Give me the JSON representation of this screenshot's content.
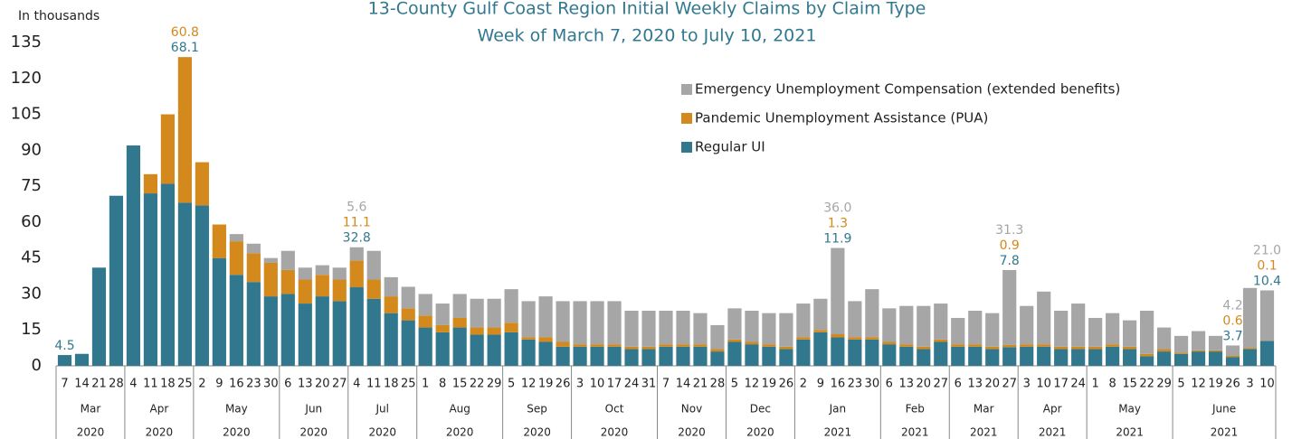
{
  "chart_data": {
    "type": "stacked_bar",
    "title": "13-County Gulf Coast Region Initial Weekly Claims by Claim Type",
    "subtitle": "Week of March 7, 2020 to July 10, 2021",
    "y_label": "In thousands",
    "months": [
      {
        "name": "Mar",
        "year": "2020",
        "days": [
          "7",
          "14",
          "21",
          "28"
        ]
      },
      {
        "name": "Apr",
        "year": "2020",
        "days": [
          "4",
          "11",
          "18",
          "25"
        ]
      },
      {
        "name": "May",
        "year": "2020",
        "days": [
          "2",
          "9",
          "16",
          "23",
          "30"
        ]
      },
      {
        "name": "Jun",
        "year": "2020",
        "days": [
          "6",
          "13",
          "20",
          "27"
        ]
      },
      {
        "name": "Jul",
        "year": "2020",
        "days": [
          "4",
          "11",
          "18",
          "25"
        ]
      },
      {
        "name": "Aug",
        "year": "2020",
        "days": [
          "1",
          "8",
          "15",
          "22",
          "29"
        ]
      },
      {
        "name": "Sep",
        "year": "2020",
        "days": [
          "5",
          "12",
          "19",
          "26"
        ]
      },
      {
        "name": "Oct",
        "year": "2020",
        "days": [
          "3",
          "10",
          "17",
          "24",
          "31"
        ]
      },
      {
        "name": "Nov",
        "year": "2020",
        "days": [
          "7",
          "14",
          "21",
          "28"
        ]
      },
      {
        "name": "Dec",
        "year": "2020",
        "days": [
          "5",
          "12",
          "19",
          "26"
        ]
      },
      {
        "name": "Jan",
        "year": "2021",
        "days": [
          "2",
          "9",
          "16",
          "23",
          "30"
        ]
      },
      {
        "name": "Feb",
        "year": "2021",
        "days": [
          "6",
          "13",
          "20",
          "27"
        ]
      },
      {
        "name": "Mar",
        "year": "2021",
        "days": [
          "6",
          "13",
          "20",
          "27"
        ]
      },
      {
        "name": "Apr",
        "year": "2021",
        "days": [
          "3",
          "10",
          "17",
          "24"
        ]
      },
      {
        "name": "May",
        "year": "2021",
        "days": [
          "1",
          "8",
          "15",
          "22",
          "29"
        ]
      },
      {
        "name": "June",
        "year": "2021",
        "days": [
          "5",
          "12",
          "19",
          "26",
          "3",
          "10"
        ]
      }
    ],
    "series": [
      {
        "name": "Regular UI",
        "color": "#31788f",
        "values": [
          4.5,
          5,
          41,
          71,
          92,
          72,
          76,
          68.1,
          67,
          45,
          38,
          35,
          29,
          30,
          26,
          29,
          27,
          32.8,
          28,
          22,
          19,
          16,
          14,
          16,
          13,
          13,
          14,
          11,
          10,
          8,
          8,
          8,
          8,
          7,
          7,
          8,
          8,
          8,
          6,
          10,
          9,
          8,
          7,
          11,
          14,
          11.9,
          11,
          11,
          9,
          8,
          7,
          10,
          8,
          8,
          7,
          7.8,
          8,
          8,
          7,
          7,
          7,
          8,
          7,
          4,
          6,
          5,
          6,
          6,
          3.7,
          7,
          10.4
        ],
        "value_labels": [
          "4.5",
          null,
          null,
          null,
          null,
          null,
          null,
          "68.1",
          null,
          null,
          null,
          null,
          null,
          null,
          null,
          null,
          null,
          "32.8",
          null,
          null,
          null,
          null,
          null,
          null,
          null,
          null,
          null,
          null,
          null,
          null,
          null,
          null,
          null,
          null,
          null,
          null,
          null,
          null,
          null,
          null,
          null,
          null,
          null,
          null,
          null,
          "11.9",
          null,
          null,
          null,
          null,
          null,
          null,
          null,
          null,
          null,
          "7.8",
          null,
          null,
          null,
          null,
          null,
          null,
          null,
          null,
          null,
          null,
          null,
          null,
          "3.7",
          null,
          "10.4"
        ]
      },
      {
        "name": "Pandemic Unemployment Assistance (PUA)",
        "color": "#d4891c",
        "values": [
          0,
          0,
          0,
          0,
          0,
          8,
          29,
          60.8,
          18,
          14,
          14,
          12,
          14,
          10,
          10,
          9,
          9,
          11.1,
          8,
          7,
          5,
          5,
          3,
          4,
          3,
          3,
          4,
          1,
          2,
          2,
          1,
          1,
          1,
          1,
          1,
          1,
          1,
          1,
          1,
          1,
          1,
          1,
          1,
          1,
          1,
          1.3,
          1,
          1,
          1,
          1,
          1,
          1,
          1,
          1,
          1,
          0.9,
          1,
          1,
          1,
          1,
          1,
          1,
          1,
          1,
          1,
          0.5,
          0.5,
          0.5,
          0.6,
          0.5,
          0.1
        ],
        "value_labels": [
          null,
          null,
          null,
          null,
          null,
          null,
          null,
          "60.8",
          null,
          null,
          null,
          null,
          null,
          null,
          null,
          null,
          null,
          "11.1",
          null,
          null,
          null,
          null,
          null,
          null,
          null,
          null,
          null,
          null,
          null,
          null,
          null,
          null,
          null,
          null,
          null,
          null,
          null,
          null,
          null,
          null,
          null,
          null,
          null,
          null,
          null,
          "1.3",
          null,
          null,
          null,
          null,
          null,
          null,
          null,
          null,
          null,
          "0.9",
          null,
          null,
          null,
          null,
          null,
          null,
          null,
          null,
          null,
          null,
          null,
          null,
          "0.6",
          null,
          "0.1"
        ]
      },
      {
        "name": "Emergency Unemployment Compensation (extended benefits)",
        "color": "#a6a6a6",
        "values": [
          0,
          0,
          0,
          0,
          0,
          0,
          0,
          0,
          0,
          0,
          3,
          4,
          2,
          8,
          5,
          4,
          5,
          5.6,
          12,
          8,
          9,
          9,
          9,
          10,
          12,
          12,
          14,
          15,
          17,
          17,
          18,
          18,
          18,
          15,
          15,
          14,
          14,
          13,
          10,
          13,
          13,
          13,
          14,
          14,
          13,
          36.0,
          15,
          20,
          14,
          16,
          17,
          15,
          11,
          14,
          14,
          31.3,
          16,
          22,
          15,
          18,
          12,
          13,
          11,
          18,
          9,
          7,
          8,
          6,
          4.2,
          25,
          21.0
        ],
        "value_labels": [
          null,
          null,
          null,
          null,
          null,
          null,
          null,
          null,
          null,
          null,
          null,
          null,
          null,
          null,
          null,
          null,
          null,
          "5.6",
          null,
          null,
          null,
          null,
          null,
          null,
          null,
          null,
          null,
          null,
          null,
          null,
          null,
          null,
          null,
          null,
          null,
          null,
          null,
          null,
          null,
          null,
          null,
          null,
          null,
          null,
          null,
          "36.0",
          null,
          null,
          null,
          null,
          null,
          null,
          null,
          null,
          null,
          "31.3",
          null,
          null,
          null,
          null,
          null,
          null,
          null,
          null,
          null,
          null,
          null,
          null,
          "4.2",
          null,
          "21.0"
        ]
      }
    ],
    "ylim": [
      0,
      135
    ],
    "yticks": [
      0,
      15,
      30,
      45,
      60,
      75,
      90,
      105,
      120,
      135
    ],
    "grid": false,
    "legend": "upper right"
  }
}
